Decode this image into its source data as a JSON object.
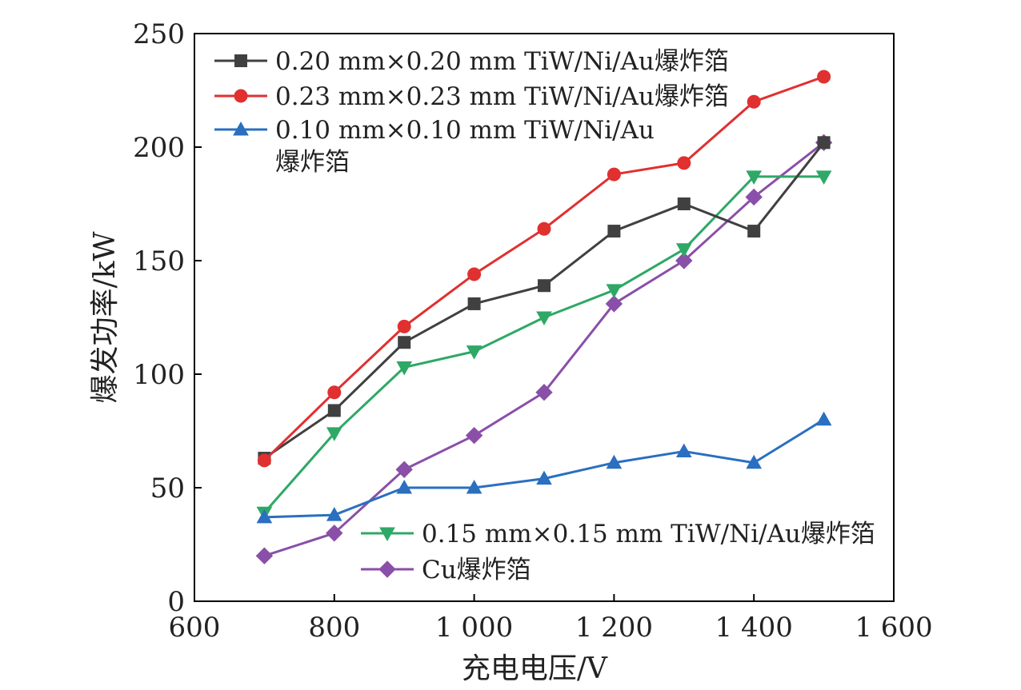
{
  "chart_data": {
    "type": "line",
    "title": "",
    "xlabel": "充电电压/V",
    "ylabel": "爆发功率/kW",
    "xlim": [
      600,
      1600
    ],
    "ylim": [
      0,
      250
    ],
    "x_ticks": [
      600,
      800,
      1000,
      1200,
      1400,
      1600
    ],
    "x_tick_labels": [
      "600",
      "800",
      "1 000",
      "1 200",
      "1 400",
      "1 600"
    ],
    "y_ticks": [
      0,
      50,
      100,
      150,
      200,
      250
    ],
    "y_tick_labels": [
      "0",
      "50",
      "100",
      "150",
      "200",
      "250"
    ],
    "grid": false,
    "legend_placement": "top-left and bottom-right",
    "x": [
      700,
      800,
      900,
      1000,
      1100,
      1200,
      1300,
      1400,
      1500
    ],
    "series": [
      {
        "name": "0.20 mm×0.20 mm TiW/Ni/Au爆炸箔",
        "name_lines": [
          "0.20 mm×0.20 mm TiW/Ni/Au爆炸箔"
        ],
        "color": "#404040",
        "marker": "square",
        "values": [
          63,
          84,
          114,
          131,
          139,
          163,
          175,
          163,
          202
        ]
      },
      {
        "name": "0.23 mm×0.23 mm TiW/Ni/Au爆炸箔",
        "name_lines": [
          "0.23 mm×0.23 mm TiW/Ni/Au爆炸箔"
        ],
        "color": "#e03030",
        "marker": "circle",
        "values": [
          62,
          92,
          121,
          144,
          164,
          188,
          193,
          220,
          231
        ]
      },
      {
        "name": "0.10 mm×0.10 mm TiW/Ni/Au爆炸箔",
        "name_lines": [
          "0.10 mm×0.10 mm TiW/Ni/Au",
          "爆炸箔"
        ],
        "color": "#2a6fc0",
        "marker": "triangle-up",
        "values": [
          37,
          38,
          50,
          50,
          54,
          61,
          66,
          61,
          80
        ]
      },
      {
        "name": "0.15 mm×0.15 mm TiW/Ni/Au爆炸箔",
        "name_lines": [
          "0.15 mm×0.15 mm TiW/Ni/Au爆炸箔"
        ],
        "color": "#2ea866",
        "marker": "triangle-down",
        "values": [
          39,
          74,
          103,
          110,
          125,
          137,
          155,
          187,
          187
        ]
      },
      {
        "name": "Cu爆炸箔",
        "name_lines": [
          "Cu爆炸箔"
        ],
        "color": "#8a4fa8",
        "marker": "diamond",
        "values": [
          20,
          30,
          58,
          73,
          92,
          131,
          150,
          178,
          202
        ]
      }
    ]
  }
}
